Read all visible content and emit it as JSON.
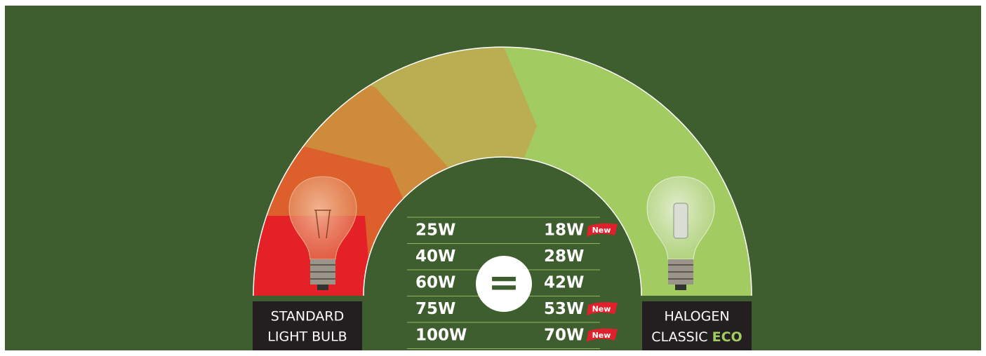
{
  "left_label": {
    "lines": [
      "STANDARD",
      "LIGHT BULB"
    ]
  },
  "right_label": {
    "lines": [
      "HALOGEN",
      "CLASSIC"
    ],
    "highlight": "ECO"
  },
  "equals": "=",
  "table": {
    "rows": [
      {
        "standard": "25W",
        "halogen": "18W",
        "badge": "New"
      },
      {
        "standard": "40W",
        "halogen": "28W"
      },
      {
        "standard": "60W",
        "halogen": "42W"
      },
      {
        "standard": "75W",
        "halogen": "53W",
        "badge": "New"
      },
      {
        "standard": "100W",
        "halogen": "70W",
        "badge": "New"
      }
    ]
  }
}
